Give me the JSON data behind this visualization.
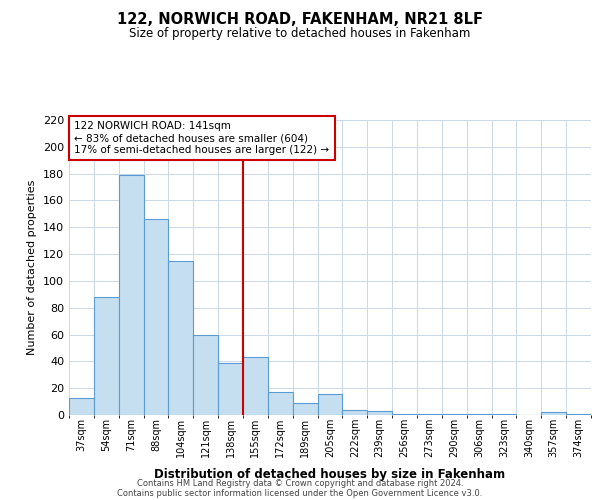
{
  "title": "122, NORWICH ROAD, FAKENHAM, NR21 8LF",
  "subtitle": "Size of property relative to detached houses in Fakenham",
  "xlabel": "Distribution of detached houses by size in Fakenham",
  "ylabel": "Number of detached properties",
  "bar_labels": [
    "37sqm",
    "54sqm",
    "71sqm",
    "88sqm",
    "104sqm",
    "121sqm",
    "138sqm",
    "155sqm",
    "172sqm",
    "189sqm",
    "205sqm",
    "222sqm",
    "239sqm",
    "256sqm",
    "273sqm",
    "290sqm",
    "306sqm",
    "323sqm",
    "340sqm",
    "357sqm",
    "374sqm"
  ],
  "bar_values": [
    13,
    88,
    179,
    146,
    115,
    60,
    39,
    43,
    17,
    9,
    16,
    4,
    3,
    1,
    1,
    1,
    1,
    1,
    0,
    2,
    1
  ],
  "bar_color": "#c6dff0",
  "bar_edge_color": "#5b9bd5",
  "vline_x": 7,
  "vline_color": "#cc0000",
  "ylim": [
    0,
    220
  ],
  "yticks": [
    0,
    20,
    40,
    60,
    80,
    100,
    120,
    140,
    160,
    180,
    200,
    220
  ],
  "annotation_title": "122 NORWICH ROAD: 141sqm",
  "annotation_line1": "← 83% of detached houses are smaller (604)",
  "annotation_line2": "17% of semi-detached houses are larger (122) →",
  "annotation_box_color": "#ffffff",
  "annotation_box_edge": "#cc0000",
  "footer_line1": "Contains HM Land Registry data © Crown copyright and database right 2024.",
  "footer_line2": "Contains public sector information licensed under the Open Government Licence v3.0.",
  "background_color": "#ffffff",
  "grid_color": "#c8d8e8"
}
